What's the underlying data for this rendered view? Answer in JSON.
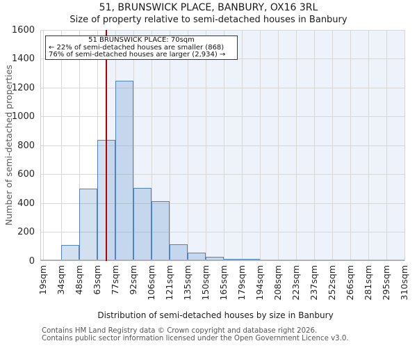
{
  "chart_data": {
    "type": "bar",
    "title": "51, BRUNSWICK PLACE, BANBURY, OX16 3RL",
    "subtitle": "Size of property relative to semi-detached houses in Banbury",
    "xlabel": "Distribution of semi-detached houses by size in Banbury",
    "ylabel": "Number of semi-detached properties",
    "bin_labels": [
      "19sqm",
      "34sqm",
      "48sqm",
      "63sqm",
      "77sqm",
      "92sqm",
      "106sqm",
      "121sqm",
      "135sqm",
      "150sqm",
      "165sqm",
      "179sqm",
      "194sqm",
      "208sqm",
      "223sqm",
      "237sqm",
      "252sqm",
      "266sqm",
      "281sqm",
      "295sqm",
      "310sqm"
    ],
    "values": [
      8,
      110,
      500,
      840,
      1250,
      505,
      415,
      118,
      58,
      28,
      15,
      14,
      6,
      5,
      0,
      0,
      0,
      0,
      0,
      0
    ],
    "ylim": [
      0,
      1600
    ],
    "yticks": [
      0,
      200,
      400,
      600,
      800,
      1000,
      1200,
      1400,
      1600
    ],
    "grid": true,
    "marker": {
      "value": 70,
      "label": "70sqm",
      "color": "#b30000"
    },
    "annotation": {
      "line1": "51 BRUNSWICK PLACE: 70sqm",
      "line2": "← 22% of semi-detached houses are smaller (868)",
      "line3": "76% of semi-detached houses are larger (2,934) →",
      "border_color": "#b30000"
    },
    "colors": {
      "bar_fill": "rgba(77,130,195,0.25)",
      "bar_edge": "#4e83c5",
      "shade": "#eef3fb",
      "grid": "#d7d7d7",
      "axis": "#b2b2b2",
      "spine": "#cfcfcf"
    }
  },
  "footer": {
    "line1": "Contains HM Land Registry data © Crown copyright and database right 2026.",
    "line2": "Contains public sector information licensed under the Open Government Licence v3.0."
  }
}
